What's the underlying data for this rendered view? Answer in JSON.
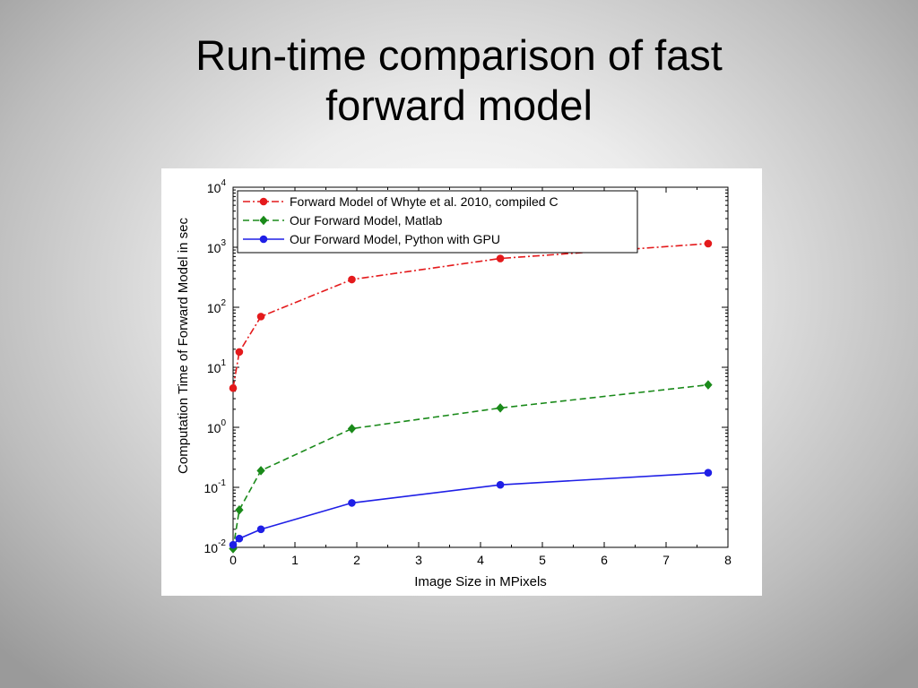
{
  "slide": {
    "title_line1": "Run-time comparison of fast",
    "title_line2": "forward model"
  },
  "chart_data": {
    "type": "line",
    "xlabel": "Image Size in MPixels",
    "ylabel": "Computation Time of Forward Model in sec",
    "xlim": [
      0,
      8
    ],
    "ylim": [
      0.01,
      10000
    ],
    "yscale": "log",
    "x_ticks": [
      "0",
      "1",
      "2",
      "3",
      "4",
      "5",
      "6",
      "7",
      "8"
    ],
    "y_tick_bases": [
      "10",
      "10",
      "10",
      "10",
      "10",
      "10",
      "10"
    ],
    "y_tick_exponents": [
      "-2",
      "-1",
      "0",
      "1",
      "2",
      "3",
      "4"
    ],
    "grid": false,
    "legend_position": "top-left",
    "series": [
      {
        "name": "Forward Model of Whyte et al. 2010, compiled C",
        "color": "#e41a1c",
        "line_style": "dash-dot",
        "marker": "circle",
        "x": [
          0.0,
          0.1,
          0.45,
          1.92,
          4.32,
          7.68
        ],
        "y": [
          4.5,
          18,
          70,
          290,
          650,
          1150
        ]
      },
      {
        "name": "Our Forward Model, Matlab",
        "color": "#1a8a1a",
        "line_style": "dashed",
        "marker": "diamond",
        "x": [
          0.0,
          0.1,
          0.45,
          1.92,
          4.32,
          7.68
        ],
        "y": [
          0.0095,
          0.042,
          0.19,
          0.95,
          2.1,
          5.1
        ]
      },
      {
        "name": "Our Forward Model, Python with GPU",
        "color": "#1f1fe6",
        "line_style": "solid",
        "marker": "circle",
        "x": [
          0.0,
          0.1,
          0.45,
          1.92,
          4.32,
          7.68
        ],
        "y": [
          0.011,
          0.014,
          0.02,
          0.055,
          0.11,
          0.175
        ]
      }
    ]
  }
}
